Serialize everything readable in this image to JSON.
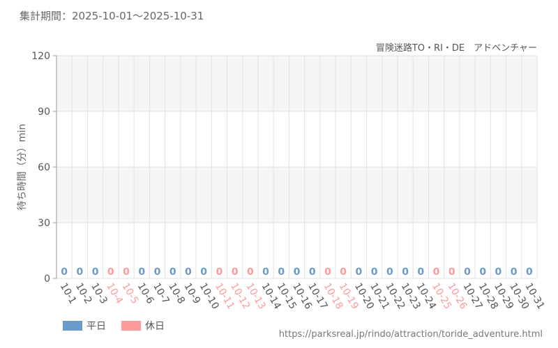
{
  "period_label": "集計期間：2025-10-01～2025-10-31",
  "source_url": "https://parksreal.jp/rindo/attraction/toride_adventure.html",
  "colors": {
    "weekday": "#6a9ac8",
    "holiday": "#ff9a9a",
    "grid_band": "#f5f5f5",
    "grid_line": "#e2e2e2"
  },
  "chart_data": {
    "type": "bar",
    "title": "冒険迷路TO・RI・DE　アドベンチャー",
    "ylabel": "待ち時間（分）min",
    "xlabel": "",
    "ylim": [
      0,
      120
    ],
    "yticks": [
      0,
      30,
      60,
      90,
      120
    ],
    "categories": [
      "10-1",
      "10-2",
      "10-3",
      "10-4",
      "10-5",
      "10-6",
      "10-7",
      "10-8",
      "10-9",
      "10-10",
      "10-11",
      "10-12",
      "10-13",
      "10-14",
      "10-15",
      "10-16",
      "10-17",
      "10-18",
      "10-19",
      "10-20",
      "10-21",
      "10-22",
      "10-23",
      "10-24",
      "10-25",
      "10-26",
      "10-27",
      "10-28",
      "10-29",
      "10-30",
      "10-31"
    ],
    "day_type": [
      "weekday",
      "weekday",
      "weekday",
      "holiday",
      "holiday",
      "weekday",
      "weekday",
      "weekday",
      "weekday",
      "weekday",
      "holiday",
      "holiday",
      "holiday",
      "weekday",
      "weekday",
      "weekday",
      "weekday",
      "holiday",
      "holiday",
      "weekday",
      "weekday",
      "weekday",
      "weekday",
      "weekday",
      "holiday",
      "holiday",
      "weekday",
      "weekday",
      "weekday",
      "weekday",
      "weekday"
    ],
    "values": [
      0,
      0,
      0,
      0,
      0,
      0,
      0,
      0,
      0,
      0,
      0,
      0,
      0,
      0,
      0,
      0,
      0,
      0,
      0,
      0,
      0,
      0,
      0,
      0,
      0,
      0,
      0,
      0,
      0,
      0,
      0
    ],
    "legend": [
      {
        "key": "weekday",
        "label": "平日"
      },
      {
        "key": "holiday",
        "label": "休日"
      }
    ]
  }
}
